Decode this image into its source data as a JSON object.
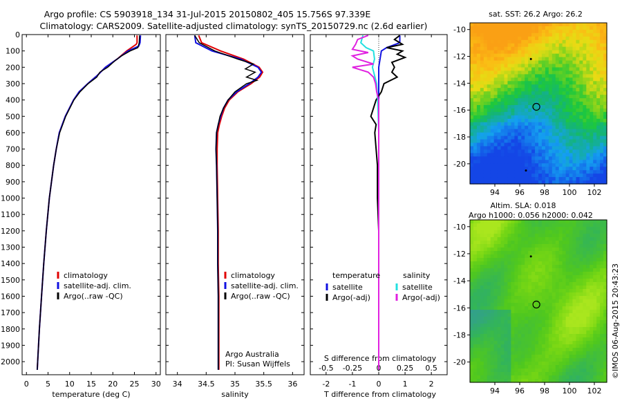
{
  "header": {
    "line1": "Argo profile: CS 5903918_134 31-Jul-2015 20150802_405 15.756S 97.339E",
    "line2": "Climatology: CARS2009. Satellite-adjusted climatology: synTS_20150729.nc (2.6d earlier)"
  },
  "credit": "©IMOS 06-Aug-2015 20:43:23",
  "colors": {
    "climatology": "#e00000",
    "satellite": "#1010e0",
    "argo": "#000000",
    "sat_salinity": "#22e0e0",
    "argo_salinity": "#e020e0"
  },
  "chart_data": [
    {
      "type": "line",
      "name": "temperature-profile",
      "xlabel": "temperature (deg C)",
      "ylabel": "",
      "xlim": [
        -1,
        31
      ],
      "ylim": [
        2080,
        0
      ],
      "xticks": [
        "0",
        "5",
        "10",
        "15",
        "20",
        "25",
        "30"
      ],
      "yticks": [
        "0",
        "100",
        "200",
        "300",
        "400",
        "500",
        "600",
        "700",
        "800",
        "900",
        "1000",
        "1100",
        "1200",
        "1300",
        "1400",
        "1500",
        "1600",
        "1700",
        "1800",
        "1900",
        "2000"
      ],
      "legend": [
        "climatology",
        "satellite-adj. clim.",
        "Argo(..raw -QC)"
      ],
      "series": [
        {
          "name": "climatology",
          "depth": [
            5,
            50,
            60,
            100,
            150,
            200,
            250,
            300,
            350,
            400,
            500,
            600,
            700,
            800,
            1000,
            1200,
            1400,
            1600,
            1800,
            2000,
            2050
          ],
          "values": [
            25.6,
            25.6,
            25.4,
            23.2,
            21.0,
            18.3,
            16.4,
            14.2,
            12.2,
            10.9,
            9.0,
            7.6,
            6.9,
            6.3,
            5.3,
            4.6,
            4.0,
            3.5,
            3.0,
            2.6,
            2.5
          ]
        },
        {
          "name": "satellite",
          "depth": [
            5,
            50,
            70,
            100,
            150,
            200,
            250,
            300,
            350,
            400,
            500,
            600,
            700,
            800,
            1000,
            1200,
            1400,
            1600,
            1800,
            2000,
            2050
          ],
          "values": [
            26.4,
            26.3,
            26.0,
            23.5,
            21.0,
            18.3,
            16.4,
            14.2,
            12.2,
            10.9,
            9.0,
            7.6,
            6.9,
            6.3,
            5.3,
            4.6,
            4.0,
            3.5,
            3.0,
            2.6,
            2.5
          ]
        },
        {
          "name": "argo",
          "depth": [
            5,
            50,
            80,
            100,
            130,
            160,
            200,
            230,
            260,
            300,
            350,
            400,
            500,
            600,
            700,
            800,
            1000,
            1200,
            1400,
            1600,
            1800,
            2000,
            2050
          ],
          "values": [
            26.2,
            26.1,
            25.8,
            24.0,
            22.0,
            20.5,
            18.8,
            17.0,
            16.3,
            14.3,
            12.4,
            11.0,
            9.1,
            7.7,
            6.9,
            6.3,
            5.3,
            4.6,
            4.0,
            3.5,
            3.0,
            2.6,
            2.5
          ]
        }
      ]
    },
    {
      "type": "line",
      "name": "salinity-profile",
      "xlabel": "salinity",
      "xlim": [
        33.8,
        36.2
      ],
      "ylim": [
        2080,
        0
      ],
      "xticks": [
        "34",
        "34.5",
        "35",
        "35.5",
        "36"
      ],
      "legend": [
        "climatology",
        "satellite-adj. clim.",
        "Argo(..raw -QC)"
      ],
      "annotation": [
        "Argo Australia",
        "PI: Susan Wijffels"
      ],
      "series": [
        {
          "name": "climatology",
          "depth": [
            5,
            50,
            100,
            150,
            200,
            230,
            260,
            300,
            350,
            400,
            450,
            500,
            550,
            600,
            700,
            800,
            1000,
            1200,
            1400,
            1600,
            1800,
            2000,
            2050
          ],
          "values": [
            34.37,
            34.42,
            34.75,
            35.15,
            35.42,
            35.48,
            35.43,
            35.28,
            35.05,
            34.9,
            34.82,
            34.77,
            34.73,
            34.7,
            34.69,
            34.69,
            34.7,
            34.71,
            34.71,
            34.72,
            34.72,
            34.72,
            34.72
          ]
        },
        {
          "name": "satellite",
          "depth": [
            5,
            50,
            100,
            150,
            200,
            230,
            260,
            300,
            350,
            400,
            450,
            500,
            550,
            600,
            700,
            800,
            1000,
            1200,
            1400,
            1600,
            1800,
            2000,
            2050
          ],
          "values": [
            34.3,
            34.32,
            34.6,
            35.1,
            35.4,
            35.46,
            35.4,
            35.25,
            35.03,
            34.88,
            34.8,
            34.75,
            34.71,
            34.68,
            34.67,
            34.68,
            34.69,
            34.7,
            34.7,
            34.71,
            34.71,
            34.71,
            34.71
          ]
        },
        {
          "name": "argo",
          "depth": [
            5,
            50,
            100,
            150,
            180,
            210,
            230,
            260,
            280,
            300,
            350,
            400,
            450,
            500,
            600,
            700,
            800,
            1000,
            1200,
            1400,
            1600,
            1800,
            2000,
            2050
          ],
          "values": [
            34.3,
            34.38,
            34.65,
            35.05,
            35.32,
            35.18,
            35.35,
            35.2,
            35.38,
            35.2,
            35.0,
            34.88,
            34.8,
            34.74,
            34.68,
            34.67,
            34.68,
            34.69,
            34.7,
            34.7,
            34.71,
            34.71,
            34.71,
            34.71
          ]
        }
      ]
    },
    {
      "type": "line",
      "name": "difference-profile",
      "xlabel": "T difference from climatology",
      "xlabel_top": "S difference from climatology",
      "xlim": [
        -2.6,
        2.6
      ],
      "ylim": [
        2080,
        0
      ],
      "xticks_T": [
        "-2",
        "-1",
        "0",
        "1",
        "2"
      ],
      "xticks_S": [
        "-0.5",
        "-0.25",
        "0",
        "0.25",
        "0.5"
      ],
      "legend": {
        "temperature_title": "temperature",
        "salinity_title": "salinity",
        "entries": [
          "satellite",
          "Argo(-adj)",
          "satellite",
          "Argo(-adj)"
        ]
      },
      "series": [
        {
          "name": "T satellite",
          "depth": [
            5,
            50,
            80,
            100,
            150,
            200,
            300,
            400,
            500,
            600,
            800,
            1000,
            1500,
            2050
          ],
          "values": [
            0.8,
            0.8,
            0.3,
            0.1,
            0.05,
            0.0,
            0.0,
            0.0,
            0.0,
            0.0,
            0.0,
            0.0,
            0.0,
            0.0
          ]
        },
        {
          "name": "T Argo(-adj)",
          "depth": [
            5,
            30,
            60,
            80,
            100,
            120,
            140,
            170,
            200,
            230,
            260,
            300,
            350,
            400,
            450,
            500,
            550,
            600,
            700,
            800,
            1000,
            1200,
            1500,
            2050
          ],
          "values": [
            0.8,
            0.6,
            0.9,
            0.3,
            0.9,
            0.7,
            1.0,
            0.5,
            0.6,
            0.5,
            0.7,
            0.2,
            0.1,
            -0.1,
            -0.2,
            -0.3,
            -0.1,
            -0.15,
            -0.1,
            -0.05,
            -0.05,
            0.0,
            0.0,
            0.0
          ]
        },
        {
          "name": "S satellite",
          "depth": [
            5,
            50,
            80,
            100,
            150,
            200,
            300,
            400,
            600,
            800,
            1000,
            1500,
            2050
          ],
          "values": [
            -0.15,
            -0.17,
            -0.12,
            -0.05,
            -0.04,
            -0.06,
            -0.02,
            -0.01,
            0.0,
            0.0,
            0.0,
            0.0,
            0.0
          ]
        },
        {
          "name": "S Argo(-adj)",
          "depth": [
            5,
            30,
            60,
            90,
            110,
            130,
            150,
            180,
            200,
            230,
            260,
            300,
            350,
            400,
            500,
            600,
            800,
            1000,
            1500,
            2050
          ],
          "values": [
            -0.1,
            -0.2,
            -0.22,
            -0.25,
            -0.1,
            -0.25,
            -0.2,
            -0.05,
            -0.25,
            -0.1,
            -0.05,
            -0.03,
            -0.02,
            0.0,
            0.0,
            0.0,
            0.0,
            0.0,
            0.0,
            0.0
          ]
        }
      ]
    },
    {
      "type": "heatmap",
      "name": "sst-map",
      "title": "sat. SST: 26.2 Argo: 26.2",
      "xlim": [
        92,
        103
      ],
      "ylim": [
        -21.5,
        -9.5
      ],
      "xticks": [
        "94",
        "96",
        "98",
        "100",
        "102"
      ],
      "yticks": [
        "-10",
        "-12",
        "-14",
        "-16",
        "-18",
        "-20"
      ],
      "marker": {
        "lon": 97.339,
        "lat": -15.756
      },
      "track": [
        {
          "lon": 96.9,
          "lat": -12.2
        },
        {
          "lon": 96.5,
          "lat": -20.5
        }
      ]
    },
    {
      "type": "heatmap",
      "name": "sla-map",
      "title_line1": "Altim. SLA: 0.018",
      "title_line2": "Argo h1000: 0.056 h2000: 0.042",
      "xlim": [
        92,
        103
      ],
      "ylim": [
        -21.5,
        -9.5
      ],
      "xticks": [
        "94",
        "96",
        "98",
        "100",
        "102"
      ],
      "yticks": [
        "-10",
        "-12",
        "-14",
        "-16",
        "-18",
        "-20"
      ],
      "marker": {
        "lon": 97.339,
        "lat": -15.756
      },
      "track": [
        {
          "lon": 96.9,
          "lat": -12.2
        }
      ]
    }
  ]
}
